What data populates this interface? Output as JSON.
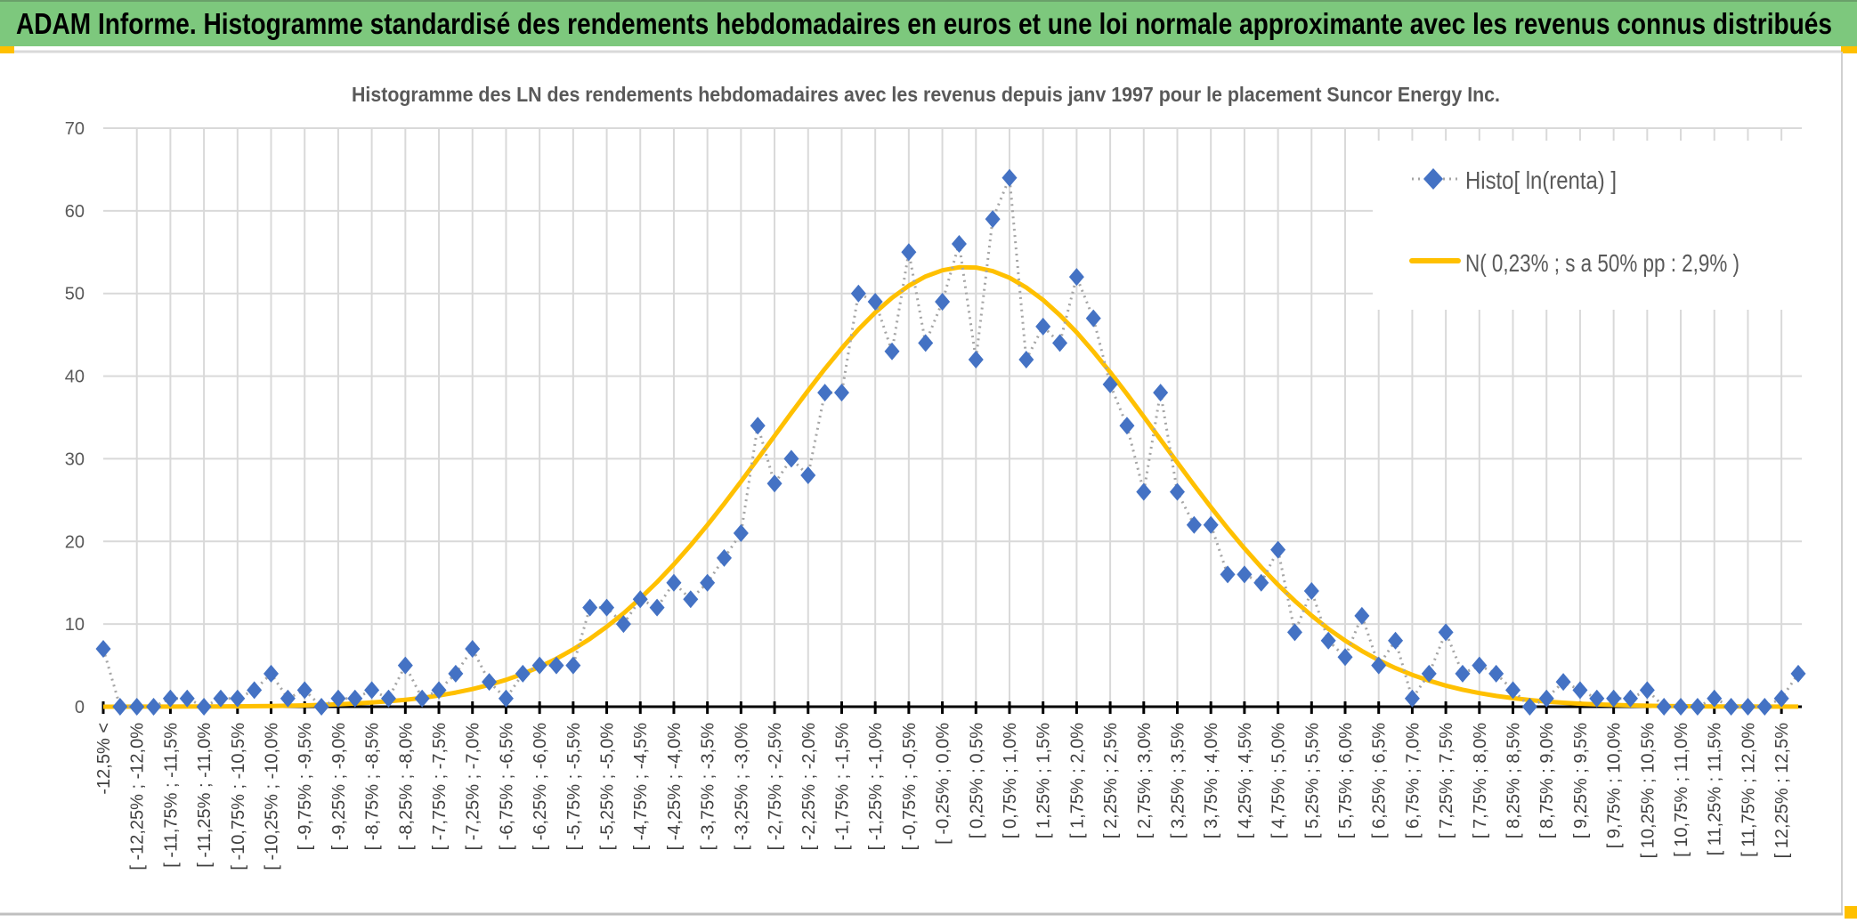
{
  "banner": {
    "title": "ADAM Informe. Histogramme standardisé des rendements hebdomadaires en euros et une loi normale approximante avec les revenus connus distribués",
    "color": "#7DC87D",
    "corner_color": "#FFC000"
  },
  "chart_data": {
    "type": "line",
    "title": "Histogramme des LN des rendements hebdomadaires avec les revenus depuis janv 1997 pour le placement Suncor Energy Inc.",
    "xlabel": "",
    "ylabel": "",
    "ylim": [
      0,
      70
    ],
    "yticks": [
      "0",
      "10",
      "20",
      "30",
      "40",
      "50",
      "60",
      "70"
    ],
    "grid": true,
    "legend_position": "top-right",
    "tick_labels": [
      "-12,5% <",
      "[ -12,25% ; -12,0%",
      "[ -11,75% ; -11,5%",
      "[ -11,25% ; -11,0%",
      "[ -10,75% ; -10,5%",
      "[ -10,25% ; -10,0%",
      "[ -9,75% ; -9,5%",
      "[ -9,25% ; -9,0%",
      "[ -8,75% ; -8,5%",
      "[ -8,25% ; -8,0%",
      "[ -7,75% ; -7,5%",
      "[ -7,25% ; -7,0%",
      "[ -6,75% ; -6,5%",
      "[ -6,25% ; -6,0%",
      "[ -5,75% ; -5,5%",
      "[ -5,25% ; -5,0%",
      "[ -4,75% ; -4,5%",
      "[ -4,25% ; -4,0%",
      "[ -3,75% ; -3,5%",
      "[ -3,25% ; -3,0%",
      "[ -2,75% ; -2,5%",
      "[ -2,25% ; -2,0%",
      "[ -1,75% ; -1,5%",
      "[ -1,25% ; -1,0%",
      "[ -0,75% ; -0,5%",
      "[ -0,25% ; 0,0%",
      "[ 0,25% ; 0,5%",
      "[ 0,75% ; 1,0%",
      "[ 1,25% ; 1,5%",
      "[ 1,75% ; 2,0%",
      "[ 2,25% ; 2,5%",
      "[ 2,75% ; 3,0%",
      "[ 3,25% ; 3,5%",
      "[ 3,75% ; 4,0%",
      "[ 4,25% ; 4,5%",
      "[ 4,75% ; 5,0%",
      "[ 5,25% ; 5,5%",
      "[ 5,75% ; 6,0%",
      "[ 6,25% ; 6,5%",
      "[ 6,75% ; 7,0%",
      "[ 7,25% ; 7,5%",
      "[ 7,75% ; 8,0%",
      "[ 8,25% ; 8,5%",
      "[ 8,75% ; 9,0%",
      "[ 9,25% ; 9,5%",
      "[ 9,75% ; 10,0%",
      "[ 10,25% ; 10,5%",
      "[ 10,75% ; 11,0%",
      "[ 11,25% ; 11,5%",
      "[ 11,75% ; 12,0%",
      "[ 12,25% ; 12,5%"
    ],
    "series": [
      {
        "name": "Histo[ ln(renta) ]",
        "style": "dotted line with diamond markers",
        "color": "#4472C4",
        "line_color": "#A5A5A5",
        "values": [
          7,
          0,
          0,
          0,
          1,
          1,
          0,
          1,
          1,
          2,
          4,
          1,
          2,
          0,
          1,
          1,
          2,
          1,
          5,
          1,
          2,
          4,
          7,
          3,
          1,
          4,
          5,
          5,
          5,
          12,
          12,
          10,
          13,
          12,
          15,
          13,
          15,
          18,
          21,
          34,
          27,
          30,
          28,
          38,
          38,
          50,
          49,
          43,
          55,
          44,
          49,
          56,
          42,
          59,
          64,
          42,
          46,
          44,
          52,
          47,
          39,
          34,
          26,
          38,
          26,
          22,
          22,
          16,
          16,
          15,
          19,
          9,
          14,
          8,
          6,
          11,
          5,
          8,
          1,
          4,
          9,
          4,
          5,
          4,
          2,
          0,
          1,
          3,
          2,
          1,
          1,
          1,
          2,
          0,
          0,
          0,
          1,
          0,
          0,
          0,
          1,
          4
        ]
      },
      {
        "name": "N( 0,23% ; s a 50% pp : 2,9% )",
        "style": "solid line",
        "color": "#FFC000",
        "mean_pct": 0.23,
        "sd_pct": 2.9,
        "peak": 53.2
      }
    ]
  }
}
